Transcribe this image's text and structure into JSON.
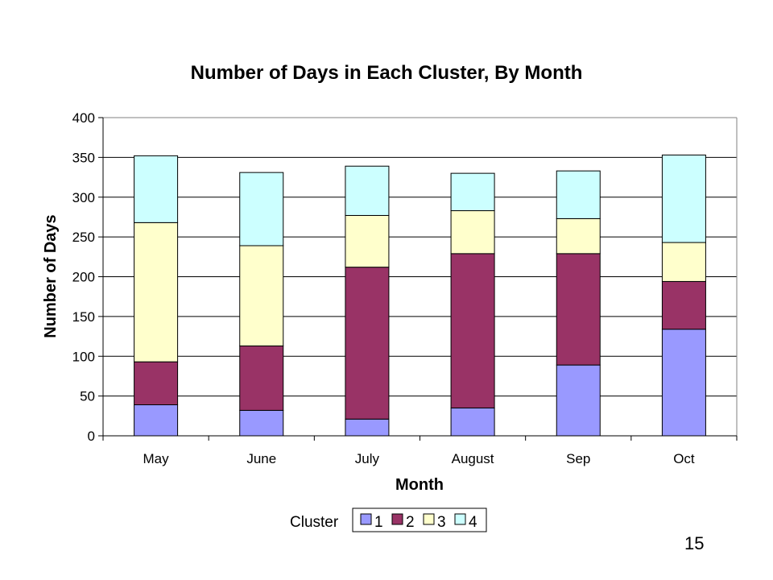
{
  "slide": {
    "page_number": "15"
  },
  "chart_data": {
    "type": "bar",
    "stacked": true,
    "title": "Number of Days in Each Cluster, By Month",
    "xlabel": "Month",
    "ylabel": "Number of Days",
    "ylim": [
      0,
      400
    ],
    "yticks": [
      "0",
      "50",
      "100",
      "150",
      "200",
      "250",
      "300",
      "350",
      "400"
    ],
    "categories": [
      "May",
      "June",
      "July",
      "August",
      "Sep",
      "Oct"
    ],
    "series": [
      {
        "name": "1",
        "color": "#9999ff",
        "values": [
          39,
          32,
          21,
          35,
          89,
          134
        ]
      },
      {
        "name": "2",
        "color": "#993366",
        "values": [
          54,
          81,
          191,
          194,
          140,
          60
        ]
      },
      {
        "name": "3",
        "color": "#ffffcc",
        "values": [
          175,
          126,
          65,
          54,
          44,
          49
        ]
      },
      {
        "name": "4",
        "color": "#ccffff",
        "values": [
          84,
          92,
          62,
          47,
          60,
          110
        ]
      }
    ],
    "grid": true,
    "legend": {
      "title": "Cluster",
      "placement": "bottom"
    }
  }
}
